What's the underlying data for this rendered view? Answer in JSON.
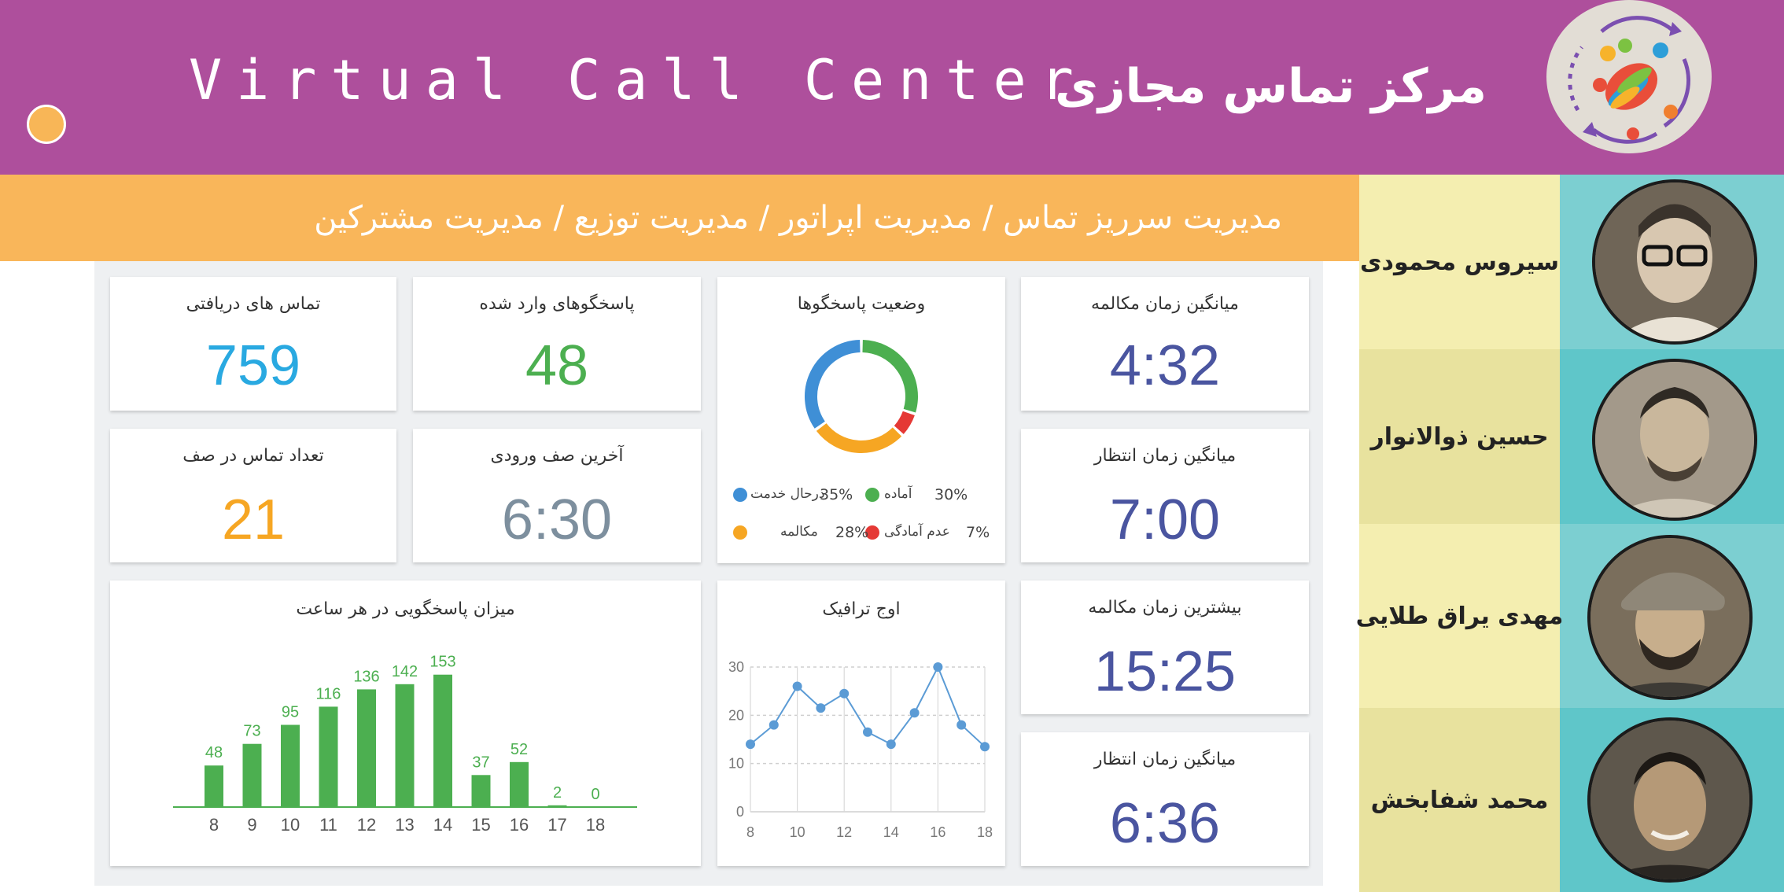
{
  "header": {
    "title_en": "Virtual Call Center",
    "title_fa": "مرکز تماس مجازی",
    "bg_color": "#ae4f9c",
    "logo_icon": "call-center-logo-icon"
  },
  "nav": {
    "text": "مدیریت سرریز تماس / مدیریت اپراتور / مدیریت توزیع / مدیریت مشترکین",
    "bg_color": "#f9b65a"
  },
  "cards": {
    "received_calls": {
      "title": "تماس های دریافتی",
      "value": "759",
      "color": "#29a9e1"
    },
    "logged_in_agents": {
      "title": "پاسخگوهای وارد شده",
      "value": "48",
      "color": "#4caf50"
    },
    "queue_calls": {
      "title": "تعداد تماس در صف",
      "value": "21",
      "color": "#f6a623"
    },
    "last_queue_entry": {
      "title": "آخرین صف ورودی",
      "value": "6:30",
      "color": "#7d8f9e"
    },
    "avg_talk_time": {
      "title": "میانگین زمان مکالمه",
      "value": "4:32",
      "color": "#4a55a0"
    },
    "avg_wait_time": {
      "title": "میانگین زمان انتظار",
      "value": "7:00",
      "color": "#4a55a0"
    },
    "max_talk_time": {
      "title": "بیشترین زمان مکالمه",
      "value": "15:25",
      "color": "#4a55a0"
    },
    "avg_wait_time_2": {
      "title": "میانگین زمان انتظار",
      "value": "6:36",
      "color": "#4a55a0"
    }
  },
  "agent_status": {
    "title": "وضعیت پاسخگوها",
    "legend": [
      {
        "pct": "30%",
        "label": "آماده",
        "color": "#4caf50"
      },
      {
        "pct": "35%",
        "label": "درحال خدمت",
        "color": "#3f8fd6"
      },
      {
        "pct": "7%",
        "label": "عدم آمادگی",
        "color": "#e53935"
      },
      {
        "pct": "28%",
        "label": "مکالمه",
        "color": "#f6a623"
      }
    ]
  },
  "chart_data": [
    {
      "type": "bar",
      "title": "میزان پاسخگویی در هر ساعت",
      "categories": [
        "8",
        "9",
        "10",
        "11",
        "12",
        "13",
        "14",
        "15",
        "16",
        "17",
        "18"
      ],
      "values": [
        48,
        73,
        95,
        116,
        136,
        142,
        153,
        37,
        52,
        2,
        0
      ],
      "color": "#4caf50",
      "ylim": [
        0,
        160
      ]
    },
    {
      "type": "line",
      "title": "اوج ترافیک",
      "x": [
        8,
        9,
        10,
        11,
        12,
        13,
        14,
        15,
        16,
        17,
        18
      ],
      "values": [
        14,
        18,
        26,
        21.5,
        24.5,
        16.5,
        14,
        20.5,
        30,
        18,
        13.5
      ],
      "xticks": [
        "8",
        "10",
        "12",
        "14",
        "16",
        "18"
      ],
      "yticks": [
        "0",
        "10",
        "20",
        "30"
      ],
      "ylim": [
        0,
        30
      ],
      "xlim": [
        8,
        18
      ],
      "color": "#5b9bd5"
    }
  ],
  "agents": [
    {
      "name": "سیروس محمودی",
      "label_bg": "#f4eeb0",
      "photo_bg": "#7ccfd1"
    },
    {
      "name": "حسین ذوالانوار",
      "label_bg": "#e8e29e",
      "photo_bg": "#5fc6c9"
    },
    {
      "name": "مهدی یراق طلایی",
      "label_bg": "#f4eeb0",
      "photo_bg": "#7ccfd1"
    },
    {
      "name": "محمد شفابخش",
      "label_bg": "#e8e29e",
      "photo_bg": "#5fc6c9"
    }
  ]
}
